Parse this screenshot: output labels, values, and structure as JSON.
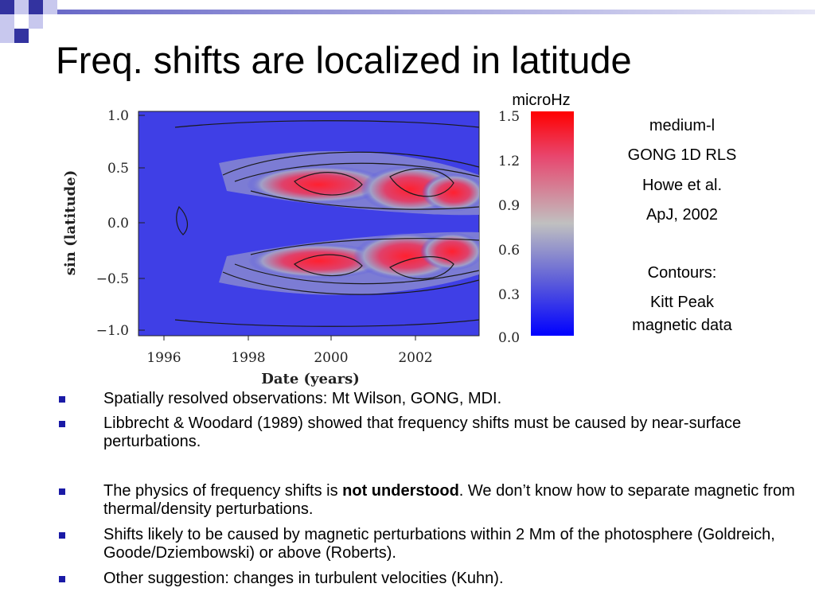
{
  "slide": {
    "title": "Freq. shifts are localized in latitude",
    "colors": {
      "accent_dark": "#3333a0",
      "accent_light": "#c8c8ee",
      "bullet": "#1a1aa6"
    }
  },
  "figure": {
    "colorbar_unit": "microHz",
    "colorbar_ticks": [
      "1.5",
      "1.2",
      "0.9",
      "0.6",
      "0.3",
      "0.0"
    ],
    "y_ticks": [
      "1.0",
      "0.5",
      "0.0",
      "−0.5",
      "−1.0"
    ],
    "x_ticks": [
      "1996",
      "1998",
      "2000",
      "2002"
    ],
    "ylabel": "sin (latitude)",
    "xlabel": "Date (years)",
    "colorbar_colors": [
      "#ff0000",
      "#e8466e",
      "#c0c0c0",
      "#6060d8",
      "#0000ff"
    ]
  },
  "side_notes": {
    "line1": "medium-l",
    "line2": "GONG 1D RLS",
    "line3": "Howe et al.",
    "line4": "ApJ, 2002",
    "line5": "Contours:",
    "line6": "Kitt Peak",
    "line7": "magnetic data"
  },
  "bullets": {
    "b1": "Spatially resolved observations: Mt Wilson, GONG, MDI.",
    "b2": "Libbrecht & Woodard (1989) showed that frequency shifts must be caused by near-surface perturbations.",
    "b3_pre": "The physics of frequency shifts is ",
    "b3_bold": "not understood",
    "b3_post": ". We don’t know how to separate magnetic from thermal/density perturbations.",
    "b4": "Shifts likely to be caused by magnetic perturbations within 2 Mm of the photosphere (Goldreich, Goode/Dziembowski) or above (Roberts).",
    "b5": "Other suggestion: changes in turbulent velocities (Kuhn)."
  }
}
